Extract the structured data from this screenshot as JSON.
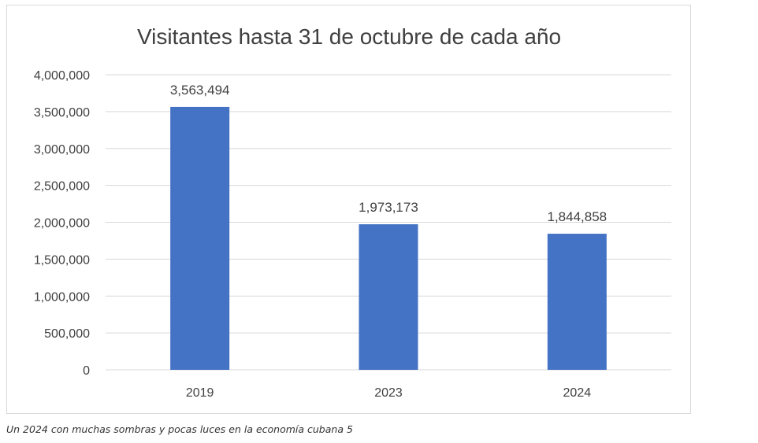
{
  "chart_data": {
    "type": "bar",
    "title": "Visitantes hasta 31 de octubre de cada año",
    "xlabel": "",
    "ylabel": "",
    "categories": [
      "2019",
      "2023",
      "2024"
    ],
    "values": [
      3563494,
      1973173,
      1844858
    ],
    "data_labels": [
      "3,563,494",
      "1,973,173",
      "1,844,858"
    ],
    "ylim": [
      0,
      4000000
    ],
    "y_ticks": [
      0,
      500000,
      1000000,
      1500000,
      2000000,
      2500000,
      3000000,
      3500000,
      4000000
    ],
    "y_tick_labels": [
      "0",
      "500,000",
      "1,000,000",
      "1,500,000",
      "2,000,000",
      "2,500,000",
      "3,000,000",
      "3,500,000",
      "4,000,000"
    ],
    "grid": true,
    "legend": "none",
    "bar_color": "#4472c4"
  },
  "caption": "Un 2024 con muchas sombras y pocas luces en la economía cubana 5"
}
